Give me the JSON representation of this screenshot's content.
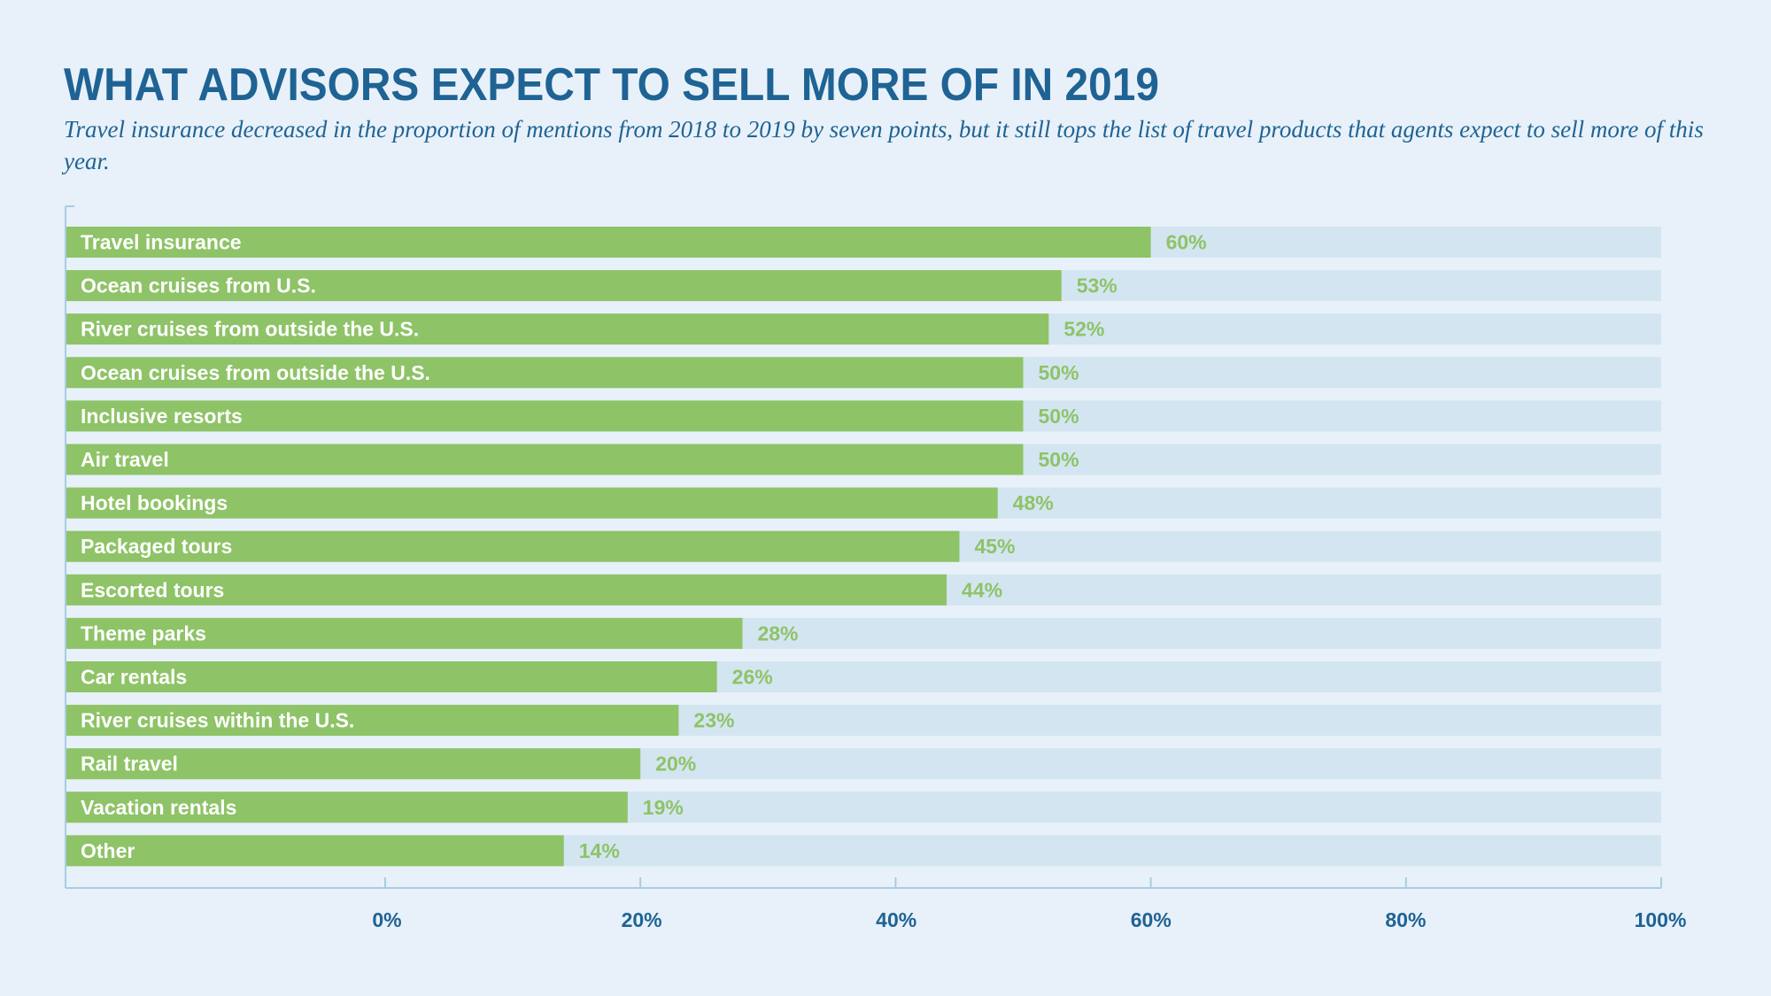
{
  "header": {
    "title": "WHAT ADVISORS EXPECT TO SELL MORE OF IN 2019",
    "subtitle": "Travel insurance decreased in the proportion of mentions from 2018 to 2019 by seven points, but it still tops the list of travel products that agents expect to sell more of this year."
  },
  "colors": {
    "background": "#e8f1f9",
    "track": "#d3e5f1",
    "bar": "#8ec367",
    "value_text": "#8ec367",
    "title_text": "#1f6394",
    "axis": "#a9cbe3"
  },
  "chart_data": {
    "type": "bar",
    "orientation": "horizontal",
    "title": "WHAT ADVISORS EXPECT TO SELL MORE OF IN 2019",
    "subtitle": "Travel insurance decreased in the proportion of mentions from 2018 to 2019 by seven points, but it still tops the list of travel products that agents expect to sell more of this year.",
    "categories": [
      "Travel insurance",
      "Ocean cruises from U.S.",
      "River cruises from outside the U.S.",
      "Ocean cruises from outside the U.S.",
      "Inclusive resorts",
      "Air travel",
      "Hotel bookings",
      "Packaged tours",
      "Escorted tours",
      "Theme parks",
      "Car rentals",
      "River cruises within the U.S.",
      "Rail travel",
      "Vacation rentals",
      "Other"
    ],
    "values": [
      60,
      53,
      52,
      50,
      50,
      50,
      48,
      45,
      44,
      28,
      26,
      23,
      20,
      19,
      14
    ],
    "value_labels": [
      "60%",
      "53%",
      "52%",
      "50%",
      "50%",
      "50%",
      "48%",
      "45%",
      "44%",
      "28%",
      "26%",
      "23%",
      "20%",
      "19%",
      "14%"
    ],
    "xlim": [
      0,
      100
    ],
    "xticks": [
      0,
      20,
      40,
      60,
      80,
      100
    ],
    "xtick_labels": [
      "0%",
      "20%",
      "40%",
      "60%",
      "80%",
      "100%"
    ],
    "xlabel": "",
    "ylabel": "",
    "grid": false,
    "legend": "none"
  }
}
